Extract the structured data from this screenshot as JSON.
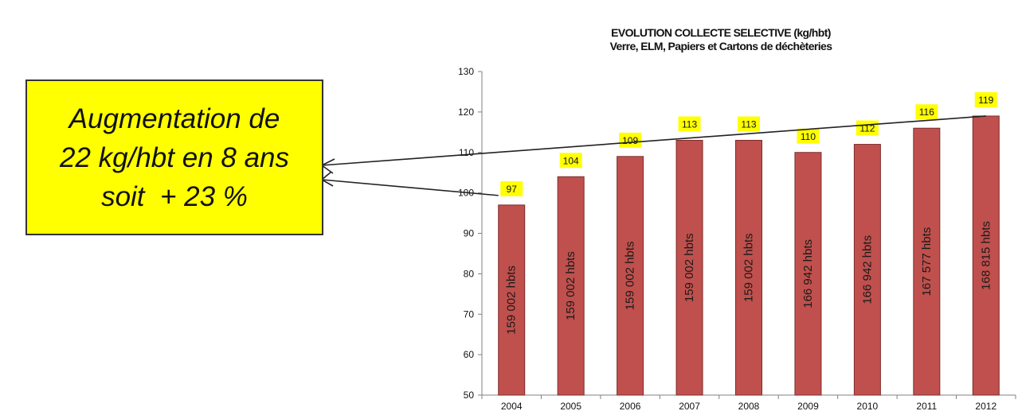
{
  "colors": {
    "bar": "#c0504d",
    "bar_edge": "#7a2c2a",
    "label_bg": "#ffff00",
    "callout_bg": "#ffff00",
    "axis": "#808080",
    "text": "#111111"
  },
  "callout": {
    "line1": "Augmentation de",
    "line2": "22 kg/hbt en 8 ans",
    "line3": "soit  + 23 %"
  },
  "chart_data": {
    "type": "bar",
    "title": "EVOLUTION COLLECTE SELECTIVE (kg/hbt)",
    "subtitle": "Verre, ELM, Papiers et Cartons de déchèteries",
    "categories": [
      "2004",
      "2005",
      "2006",
      "2007",
      "2008",
      "2009",
      "2010",
      "2011",
      "2012"
    ],
    "values": [
      97,
      104,
      109,
      113,
      113,
      110,
      112,
      116,
      119
    ],
    "value_labels": [
      "97",
      "104",
      "109",
      "113",
      "113",
      "110",
      "112",
      "116",
      "119"
    ],
    "bar_labels": [
      "159 002 hbts",
      "159 002 hbts",
      "159 002 hbts",
      "159 002 hbts",
      "159 002 hbts",
      "166 942 hbts",
      "166 942 hbts",
      "167 577 hbts",
      "168 815 hbts"
    ],
    "ylim": [
      50,
      130
    ],
    "yticks": [
      50,
      60,
      70,
      80,
      90,
      100,
      110,
      120,
      130
    ],
    "xlabel": "",
    "ylabel": "",
    "grid": false,
    "legend": "none"
  }
}
